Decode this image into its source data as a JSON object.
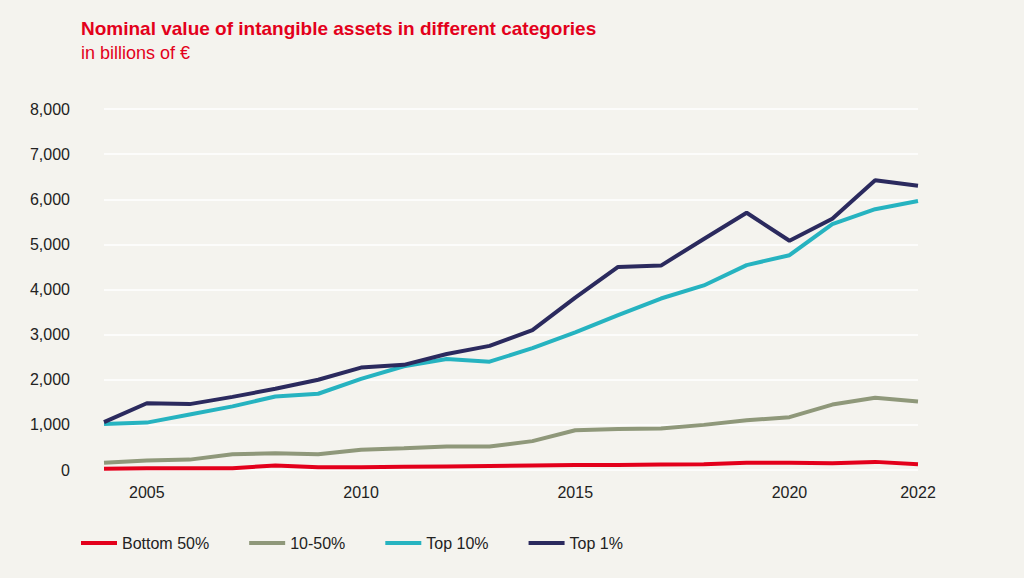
{
  "chart_data": {
    "type": "line",
    "title": "Nominal value of intangible assets in different categories",
    "subtitle": "in billions of €",
    "categories": [
      null,
      "2005",
      null,
      null,
      null,
      null,
      "2010",
      null,
      null,
      null,
      null,
      "2015",
      null,
      null,
      null,
      null,
      "2020",
      null,
      null,
      "2022"
    ],
    "series": [
      {
        "name": "Bottom 50%",
        "color": "#e3001b",
        "values": [
          30,
          40,
          40,
          40,
          100,
          60,
          60,
          70,
          80,
          90,
          100,
          110,
          110,
          120,
          130,
          160,
          160,
          150,
          180,
          130
        ]
      },
      {
        "name": "10-50%",
        "color": "#8f987a",
        "values": [
          160,
          210,
          230,
          350,
          370,
          350,
          450,
          480,
          520,
          520,
          640,
          880,
          910,
          920,
          1000,
          1100,
          1170,
          1450,
          1600,
          1520
        ]
      },
      {
        "name": "Top 10%",
        "color": "#26b3c0",
        "values": [
          1020,
          1050,
          1230,
          1410,
          1630,
          1690,
          2020,
          2300,
          2460,
          2400,
          2700,
          3050,
          3430,
          3800,
          4090,
          4540,
          4760,
          5450,
          5780,
          5960
        ]
      },
      {
        "name": "Top 1%",
        "color": "#2b2a5e",
        "values": [
          1060,
          1480,
          1460,
          1620,
          1800,
          2000,
          2270,
          2330,
          2570,
          2750,
          3100,
          3820,
          4500,
          4530,
          5120,
          5700,
          5080,
          5570,
          6420,
          6300
        ]
      }
    ],
    "ylim": [
      0,
      8000
    ],
    "yticks": [
      0,
      {
        "value": 1000,
        "label": "1,000"
      },
      {
        "value": 2000,
        "label": "2,000"
      },
      {
        "value": 3000,
        "label": "3,000"
      },
      {
        "value": 4000,
        "label": "4,000"
      },
      {
        "value": 5000,
        "label": "5,000"
      },
      {
        "value": 6000,
        "label": "6,000"
      },
      {
        "value": 7000,
        "label": "7,000"
      },
      {
        "value": 8000,
        "label": "8,000"
      }
    ],
    "grid": true,
    "legend": "bottom-left"
  }
}
